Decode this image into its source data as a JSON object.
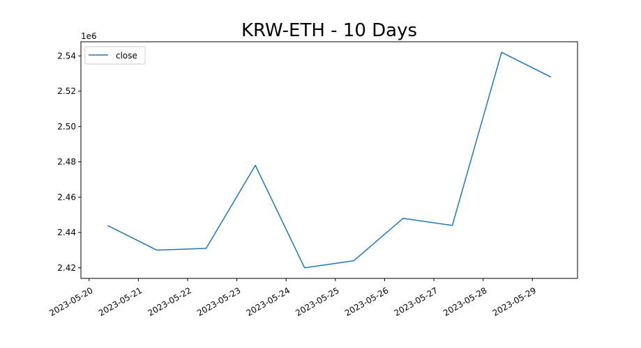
{
  "chart_data": {
    "type": "line",
    "title": "KRW-ETH - 10 Days",
    "xlabel": "",
    "ylabel": "",
    "y_offset_label": "1e6",
    "x": [
      "2023-05-20T09:00",
      "2023-05-21T09:00",
      "2023-05-22T09:00",
      "2023-05-23T09:00",
      "2023-05-24T09:00",
      "2023-05-25T09:00",
      "2023-05-26T09:00",
      "2023-05-27T09:00",
      "2023-05-28T09:00",
      "2023-05-29T09:00"
    ],
    "series": [
      {
        "name": "close",
        "color": "#1f77b4",
        "values": [
          2444000,
          2430000,
          2431000,
          2478000,
          2420000,
          2424000,
          2448000,
          2444000,
          2542000,
          2528000
        ]
      }
    ],
    "xlim": [
      "2023-05-19T20:00",
      "2023-05-29T22:00"
    ],
    "ylim": [
      2414000,
      2548000
    ],
    "x_ticks": [
      "2023-05-20",
      "2023-05-21",
      "2023-05-22",
      "2023-05-23",
      "2023-05-24",
      "2023-05-25",
      "2023-05-26",
      "2023-05-27",
      "2023-05-28",
      "2023-05-29"
    ],
    "y_ticks": [
      2420000,
      2440000,
      2460000,
      2480000,
      2500000,
      2520000,
      2540000
    ],
    "y_tick_labels": [
      "2.42",
      "2.44",
      "2.46",
      "2.48",
      "2.50",
      "2.52",
      "2.54"
    ],
    "grid": false,
    "legend": "upper-left"
  }
}
